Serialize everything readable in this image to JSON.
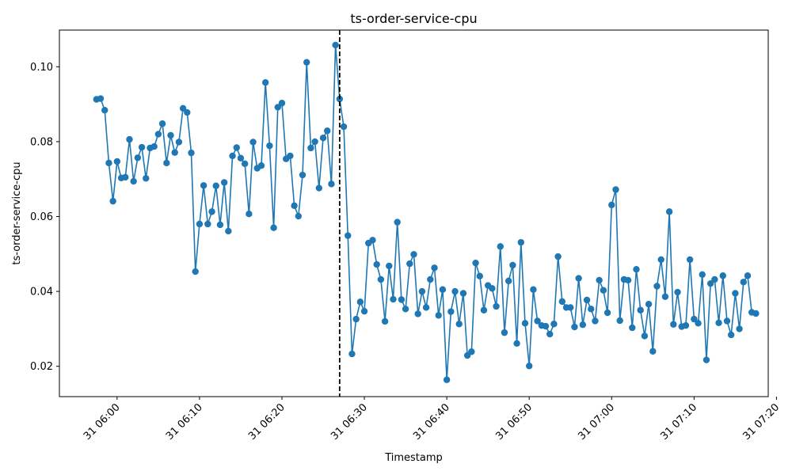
{
  "chart_data": {
    "type": "line",
    "title": "ts-order-service-cpu",
    "xlabel": "Timestamp",
    "ylabel": "ts-order-service-cpu",
    "x_start": "2024-01-31T05:57:30",
    "x_step_seconds": 30,
    "xlim": [
      "2024-01-31T05:53:00",
      "2024-01-31T07:19:00"
    ],
    "ylim": [
      0.0119,
      0.1098
    ],
    "x_ticks": [
      {
        "value": "2024-01-31T06:00:00",
        "label": "31 06:00"
      },
      {
        "value": "2024-01-31T06:10:00",
        "label": "31 06:10"
      },
      {
        "value": "2024-01-31T06:20:00",
        "label": "31 06:20"
      },
      {
        "value": "2024-01-31T06:30:00",
        "label": "31 06:30"
      },
      {
        "value": "2024-01-31T06:40:00",
        "label": "31 06:40"
      },
      {
        "value": "2024-01-31T06:50:00",
        "label": "31 06:50"
      },
      {
        "value": "2024-01-31T07:00:00",
        "label": "31 07:00"
      },
      {
        "value": "2024-01-31T07:10:00",
        "label": "31 07:10"
      },
      {
        "value": "2024-01-31T07:20:00",
        "label": "31 07:20"
      }
    ],
    "y_ticks": [
      {
        "value": 0.02,
        "label": "0.02"
      },
      {
        "value": 0.04,
        "label": "0.04"
      },
      {
        "value": 0.06,
        "label": "0.06"
      },
      {
        "value": 0.08,
        "label": "0.08"
      },
      {
        "value": 0.1,
        "label": "0.10"
      }
    ],
    "vline": {
      "x": "2024-01-31T06:27:00",
      "style": "dashed",
      "color": "#000000"
    },
    "grid": false,
    "series": [
      {
        "color": "#1f77b4",
        "values": [
          0.0913,
          0.0915,
          0.0884,
          0.0743,
          0.0641,
          0.0747,
          0.0703,
          0.0705,
          0.0806,
          0.0694,
          0.0757,
          0.0785,
          0.0702,
          0.0783,
          0.0787,
          0.082,
          0.0848,
          0.0743,
          0.0817,
          0.0771,
          0.0799,
          0.0889,
          0.0878,
          0.077,
          0.0453,
          0.058,
          0.0683,
          0.058,
          0.0613,
          0.0682,
          0.0578,
          0.0691,
          0.0561,
          0.0762,
          0.0784,
          0.0756,
          0.0741,
          0.0607,
          0.0799,
          0.0729,
          0.0736,
          0.0958,
          0.0789,
          0.057,
          0.0892,
          0.0903,
          0.0754,
          0.0762,
          0.0629,
          0.0601,
          0.0711,
          0.1012,
          0.0783,
          0.08,
          0.0676,
          0.081,
          0.0829,
          0.0687,
          0.1058,
          0.0914,
          0.084,
          0.0549,
          0.0233,
          0.0326,
          0.0372,
          0.0347,
          0.0529,
          0.0537,
          0.0472,
          0.0432,
          0.032,
          0.0468,
          0.0379,
          0.0585,
          0.0378,
          0.0353,
          0.0474,
          0.0499,
          0.034,
          0.04,
          0.0357,
          0.0432,
          0.0463,
          0.0336,
          0.0405,
          0.0164,
          0.0346,
          0.04,
          0.0313,
          0.0395,
          0.0229,
          0.0239,
          0.0476,
          0.0441,
          0.035,
          0.0416,
          0.0408,
          0.036,
          0.052,
          0.029,
          0.0428,
          0.047,
          0.0261,
          0.0531,
          0.0315,
          0.0201,
          0.0405,
          0.0321,
          0.0309,
          0.0307,
          0.0286,
          0.0313,
          0.0493,
          0.0373,
          0.0357,
          0.0357,
          0.0305,
          0.0435,
          0.0311,
          0.0377,
          0.0353,
          0.0321,
          0.043,
          0.0403,
          0.0343,
          0.0631,
          0.0672,
          0.0322,
          0.0432,
          0.043,
          0.0303,
          0.0459,
          0.035,
          0.0281,
          0.0366,
          0.024,
          0.0414,
          0.0485,
          0.0386,
          0.0613,
          0.0312,
          0.0398,
          0.0306,
          0.0309,
          0.0485,
          0.0326,
          0.0315,
          0.0445,
          0.0217,
          0.0421,
          0.0432,
          0.0316,
          0.0442,
          0.0321,
          0.0284,
          0.0395,
          0.03,
          0.0425,
          0.0442,
          0.0344,
          0.0341
        ]
      }
    ]
  }
}
